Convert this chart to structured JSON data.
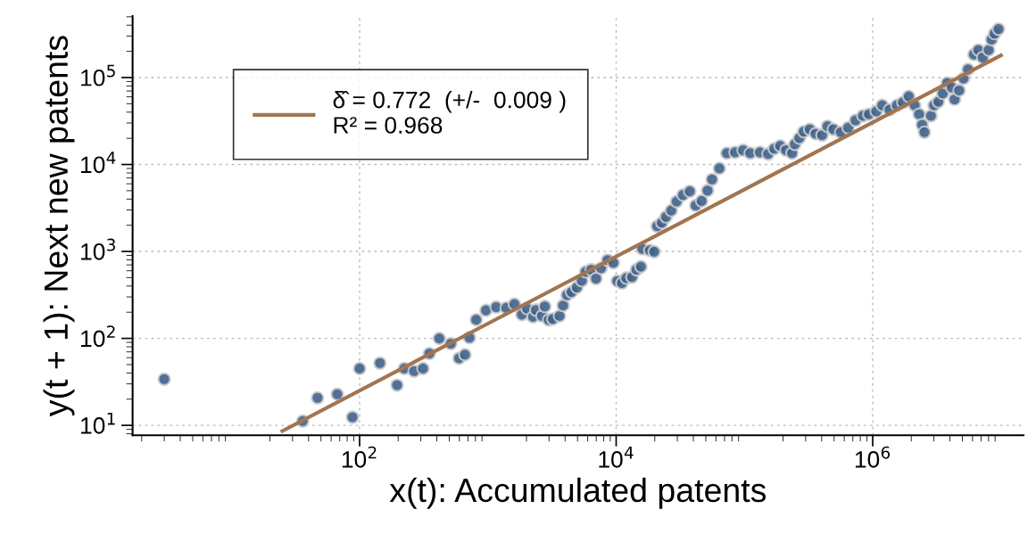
{
  "chart_data": {
    "type": "scatter",
    "xlabel": "x(t): Accumulated patents",
    "ylabel": "y(t + 1): Next new patents",
    "log": "xy",
    "grid": true,
    "legend": "top left",
    "xlim": [
      1.7,
      15000000
    ],
    "ylim": [
      7.7,
      510000
    ],
    "xticks": [
      {
        "value": 100,
        "label": "10$^{2}$"
      },
      {
        "value": 10000,
        "label": "10$^{4}$"
      },
      {
        "value": 1000000,
        "label": "10$^{6}$"
      }
    ],
    "yticks": [
      {
        "value": 10,
        "label": "10$^{1}$"
      },
      {
        "value": 100,
        "label": "10$^{2}$"
      },
      {
        "value": 1000,
        "label": "10$^{3}$"
      },
      {
        "value": 10000,
        "label": "10$^{4}$"
      },
      {
        "value": 100000,
        "label": "10$^{5}$"
      }
    ],
    "series": [
      {
        "marker": "circle",
        "color": "#3e6089",
        "x": [
          3.0,
          36,
          47,
          67,
          88,
          100,
          144,
          196,
          223,
          266,
          312,
          350,
          418,
          514,
          596,
          663,
          718,
          811,
          966,
          1160,
          1390,
          1610,
          1840,
          2020,
          2250,
          2370,
          2640,
          2780,
          2980,
          3210,
          3620,
          3860,
          4140,
          4490,
          4940,
          5400,
          5790,
          6400,
          6970,
          7630,
          8570,
          9530,
          10200,
          11100,
          12000,
          13300,
          14400,
          15600,
          16000,
          18300,
          19800,
          20900,
          22700,
          24500,
          26900,
          29600,
          33200,
          37500,
          41700,
          46400,
          51600,
          55900,
          63800,
          72900,
          84600,
          97700,
          111000,
          132000,
          153000,
          171000,
          190000,
          211000,
          235000,
          247000,
          268000,
          290000,
          323000,
          359000,
          403000,
          444000,
          494000,
          564000,
          644000,
          735000,
          839000,
          934000,
          1067000,
          1186000,
          1352000,
          1545000,
          1718000,
          1910000,
          2125000,
          2300000,
          2428000,
          2530000,
          2845000,
          3005000,
          3250000,
          3520000,
          3810000,
          4130000,
          4350000,
          4720000,
          5110000,
          5530000,
          6150000,
          6660000,
          7210000,
          8020000,
          8450000,
          8920000,
          9570000
        ],
        "values": [
          34,
          11.2,
          20.7,
          22.8,
          12.4,
          45,
          52,
          29,
          45,
          42,
          45,
          67,
          100,
          87,
          59,
          65,
          102,
          164,
          210,
          229,
          224,
          248,
          188,
          220,
          177,
          212,
          181,
          233,
          163,
          167,
          181,
          239,
          315,
          341,
          385,
          460,
          584,
          617,
          487,
          641,
          795,
          740,
          457,
          433,
          494,
          506,
          617,
          668,
          1070,
          1030,
          993,
          1950,
          2140,
          2500,
          2960,
          3750,
          4460,
          4910,
          3380,
          3810,
          5020,
          6730,
          9020,
          13500,
          13800,
          14600,
          13500,
          13800,
          13200,
          15200,
          16400,
          14600,
          13500,
          17100,
          20100,
          23900,
          25400,
          22600,
          21700,
          27500,
          25400,
          23500,
          26500,
          32200,
          36300,
          37800,
          40800,
          47900,
          42600,
          47900,
          51800,
          60800,
          47900,
          37800,
          28600,
          23500,
          36300,
          47900,
          52700,
          65800,
          86700,
          77000,
          56100,
          71100,
          97700,
          124000,
          184000,
          207000,
          170000,
          207000,
          273000,
          320000,
          361000
        ]
      },
      {
        "type": "line",
        "name": "δ̂ = 0.772  (+/-  0.009 )\nR² = 0.968",
        "color": "#a27550",
        "x": [
          25,
          10000000
        ],
        "values": [
          8.6,
          180000
        ]
      }
    ]
  }
}
